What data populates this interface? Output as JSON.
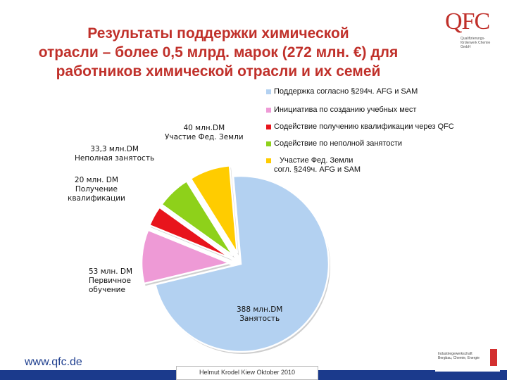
{
  "title": {
    "line1": "Результаты поддержки химической",
    "line2": "отрасли – более 0,5 млрд. марок (272 млн. €) для",
    "line3": "работников химической отрасли и их семей"
  },
  "logo": {
    "text": "QFC",
    "sub": "Qualifizierungs-förderwerk Chemie GmbH"
  },
  "legend": [
    {
      "label": "Поддержка согласно §294ч. AFG и SAM",
      "color": "#b3d1f1"
    },
    {
      "label": "Инициатива по созданию учебных мест",
      "color": "#ee9ad6"
    },
    {
      "label": "Содействие получению квалификации через QFC",
      "color": "#e8141c"
    },
    {
      "label": "Содействие по неполной занятости",
      "color": "#8ed11a"
    },
    {
      "label_line1": "Участие Фед. Земли",
      "label_line2": "согл. §249ч. AFG и SAM",
      "color": "#ffcc00"
    }
  ],
  "labels": {
    "zanyatost_1": "388 млн.DM",
    "zanyatost_2": "Занятость",
    "obuchenie_1": "53 млн. DM",
    "obuchenie_2": "Первичное",
    "obuchenie_3": "обучение",
    "kval_1": "20 млн. DM",
    "kval_2": "Получение",
    "kval_3": "квалификации",
    "nepoln_1": "33,3 млн.DM",
    "nepoln_2": "Неполная занятость",
    "zemli_1": "40 млн.DM",
    "zemli_2": "Участие Фед. Земли"
  },
  "footer": {
    "url": "www.qfc.de",
    "text": "Helmut Krodel   Kiew   Oktober 2010",
    "partner": "Industriegewerkschaft Bergbau, Chemie, Energie"
  },
  "chart_data": {
    "type": "pie",
    "title": "Результаты поддержки химической отрасли – более 0,5 млрд. марок (272 млн. €) для работников химической отрасли и их семей",
    "unit": "млн. DM",
    "slices": [
      {
        "name": "Занятость",
        "value": 388,
        "color": "#b3d1f1",
        "exploded": false
      },
      {
        "name": "Первичное обучение",
        "value": 53,
        "color": "#ee9ad6",
        "exploded": true
      },
      {
        "name": "Получение квалификации",
        "value": 20,
        "color": "#e8141c",
        "exploded": true
      },
      {
        "name": "Неполная занятость",
        "value": 33.3,
        "color": "#8ed11a",
        "exploded": true
      },
      {
        "name": "Участие Фед. Земли",
        "value": 40,
        "color": "#ffcc00",
        "exploded": true
      }
    ],
    "legend_position": "top-right"
  }
}
